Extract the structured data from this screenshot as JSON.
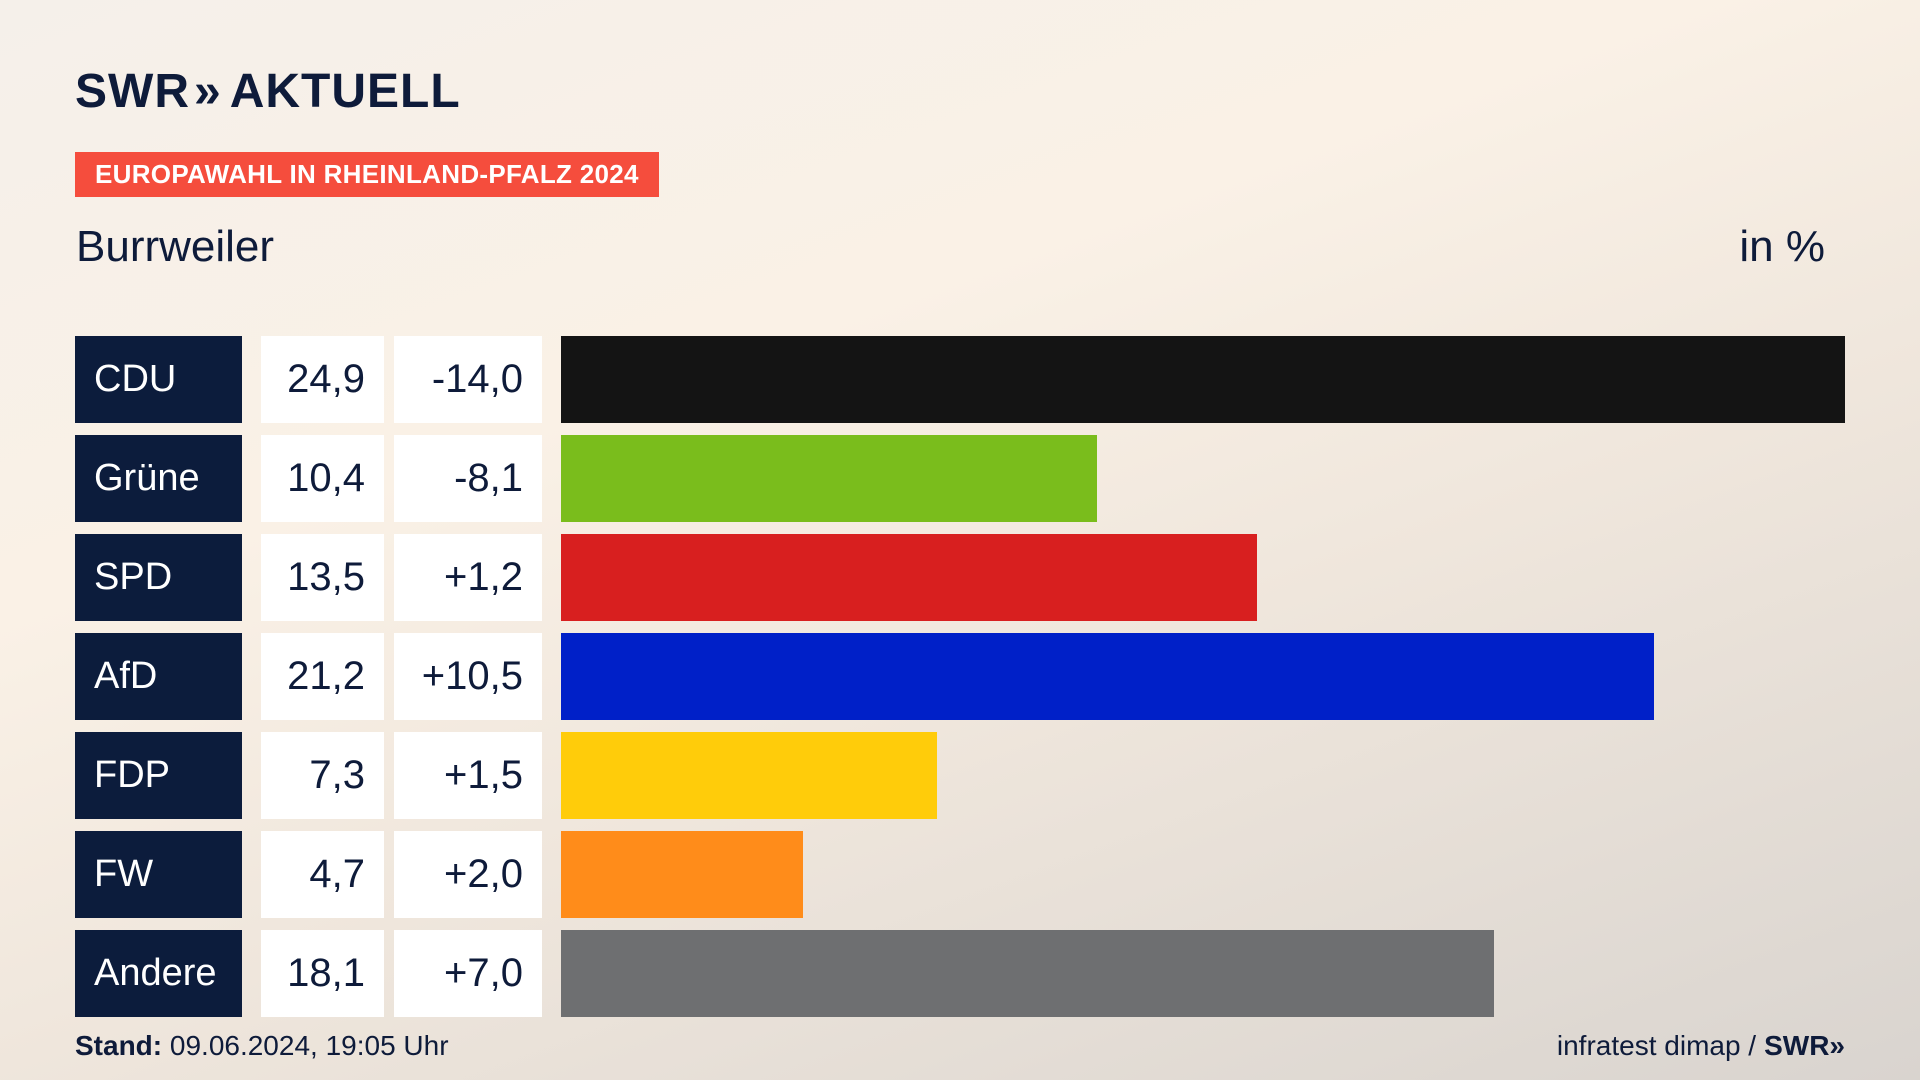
{
  "brand": {
    "logo_left": "SWR",
    "logo_chevrons": "»",
    "logo_right": "AKTUELL"
  },
  "tag": "EUROPAWAHL IN RHEINLAND-PFALZ 2024",
  "place": "Burrweiler",
  "unit": "in %",
  "colors": {
    "tag_bg": "#f54d3d",
    "party_box": "#0c1c3c"
  },
  "chart_data": {
    "type": "bar",
    "orientation": "horizontal",
    "categories": [
      "CDU",
      "Grüne",
      "SPD",
      "AfD",
      "FDP",
      "FW",
      "Andere"
    ],
    "values": [
      24.9,
      10.4,
      13.5,
      21.2,
      7.3,
      4.7,
      18.1
    ],
    "value_labels": [
      "24,9",
      "10,4",
      "13,5",
      "21,2",
      "7,3",
      "4,7",
      "18,1"
    ],
    "changes": [
      -14.0,
      -8.1,
      1.2,
      10.5,
      1.5,
      2.0,
      7.0
    ],
    "change_labels": [
      "-14,0",
      "-8,1",
      "+1,2",
      "+10,5",
      "+1,5",
      "+2,0",
      "+7,0"
    ],
    "colors": [
      "#141414",
      "#7abd1c",
      "#d81f1f",
      "#0020c8",
      "#ffcc0a",
      "#ff8c1a",
      "#6e6f71"
    ],
    "xlim": [
      0,
      24.9
    ],
    "title": "Burrweiler",
    "unit": "in %"
  },
  "footer": {
    "stand_label": "Stand:",
    "stand_value": " 09.06.2024, 19:05 Uhr",
    "source": "infratest dimap /",
    "source_brand": "SWR»"
  }
}
